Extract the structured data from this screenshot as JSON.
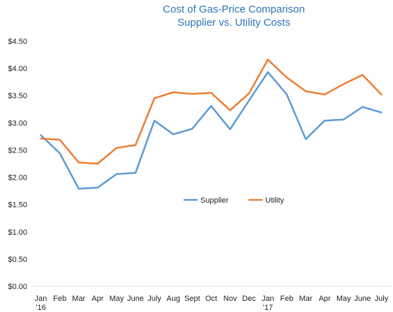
{
  "chart_data": {
    "type": "line",
    "title": "Cost of Gas-Price Comparison",
    "subtitle": "Supplier vs. Utility Costs",
    "xlabel": "",
    "ylabel": "",
    "categories": [
      [
        "Jan",
        "'16"
      ],
      [
        "Feb"
      ],
      [
        "Mar"
      ],
      [
        "Apr"
      ],
      [
        "May"
      ],
      [
        "June"
      ],
      [
        "July"
      ],
      [
        "Aug"
      ],
      [
        "Sept"
      ],
      [
        "Oct"
      ],
      [
        "Nov"
      ],
      [
        "Dec"
      ],
      [
        "Jan",
        "'17"
      ],
      [
        "Feb"
      ],
      [
        "Mar"
      ],
      [
        "Apr"
      ],
      [
        "May"
      ],
      [
        "June"
      ],
      [
        "July"
      ]
    ],
    "ylim": [
      0,
      4.5
    ],
    "yticks": [
      "$0.00",
      "$0.50",
      "$1.00",
      "$1.50",
      "$2.00",
      "$2.50",
      "$3.00",
      "$3.50",
      "$4.00",
      "$4.50"
    ],
    "ytick_values": [
      0,
      0.5,
      1,
      1.5,
      2,
      2.5,
      3,
      3.5,
      4,
      4.5
    ],
    "grid": false,
    "legend": "center",
    "series": [
      {
        "name": "Supplier",
        "color": "#5b9bd5",
        "values": [
          2.77,
          2.44,
          1.79,
          1.81,
          2.06,
          2.08,
          3.04,
          2.79,
          2.89,
          3.31,
          2.88,
          3.41,
          3.93,
          3.52,
          2.7,
          3.04,
          3.06,
          3.29,
          3.19
        ]
      },
      {
        "name": "Utility",
        "color": "#ed7d31",
        "values": [
          2.71,
          2.69,
          2.27,
          2.25,
          2.54,
          2.59,
          3.45,
          3.56,
          3.53,
          3.55,
          3.23,
          3.54,
          4.16,
          3.83,
          3.58,
          3.52,
          3.71,
          3.88,
          3.52
        ]
      }
    ],
    "axis_color": "#d9d9d9"
  }
}
